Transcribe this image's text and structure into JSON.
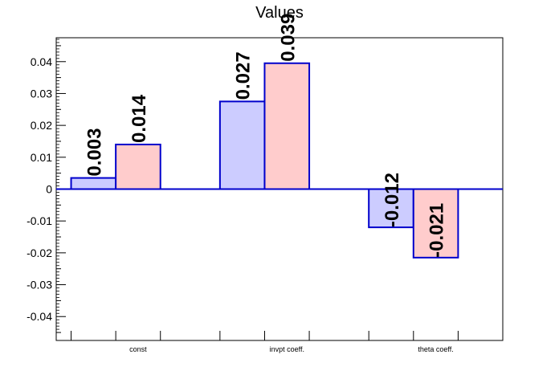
{
  "chart_data": {
    "type": "bar",
    "title": "Values",
    "xlabel": "",
    "ylabel": "",
    "categories": [
      "const",
      "invpt coeff.",
      "theta coeff."
    ],
    "series": [
      {
        "values": [
          0.0035,
          0.0275,
          -0.012
        ],
        "color": "#ccccff",
        "edge": "#0000cc"
      },
      {
        "values": [
          0.014,
          0.0395,
          -0.0215
        ],
        "color": "#ffcccc",
        "edge": "#0000cc"
      }
    ],
    "value_labels": [
      [
        "0.003",
        "0.027",
        "-0.012"
      ],
      [
        "0.014",
        "0.039",
        "-0.021"
      ]
    ],
    "ylim": [
      -0.0475,
      0.0475
    ],
    "yticks": [
      "-0.04",
      "-0.03",
      "-0.02",
      "-0.01",
      "0",
      "0.01",
      "0.02",
      "0.03",
      "0.04"
    ],
    "ytick_values": [
      -0.04,
      -0.03,
      -0.02,
      -0.01,
      0,
      0.01,
      0.02,
      0.03,
      0.04
    ],
    "grid": false,
    "legend": "none"
  }
}
